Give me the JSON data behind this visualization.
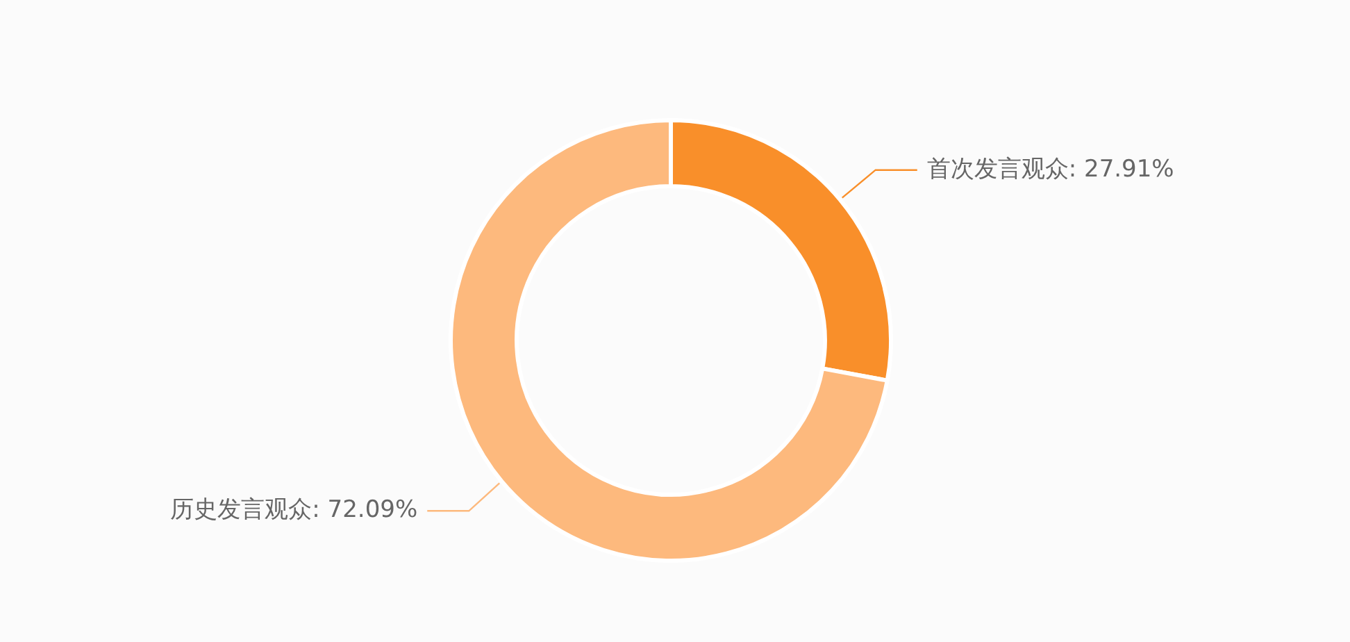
{
  "chart_data": {
    "type": "donut",
    "categories": [
      "首次发言观众",
      "历史发言观众"
    ],
    "values": [
      27.91,
      72.09
    ],
    "value_labels": [
      "27.91%",
      "72.09%"
    ],
    "colors": [
      "#f98f2a",
      "#fdb97d"
    ],
    "legend": false
  }
}
